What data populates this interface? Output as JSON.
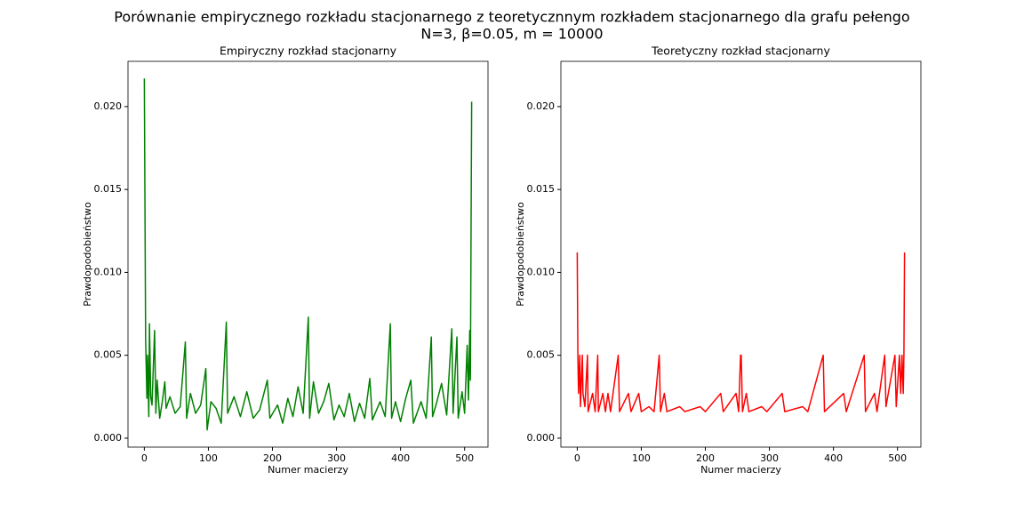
{
  "suptitle": [
    "Porównanie empirycznego rozkładu stacjonarnego z teoretycznnym rozkładem stacjonarnego dla grafu pełengo",
    "N=3, β=0.05, m = 10000"
  ],
  "chart_data": [
    {
      "type": "line",
      "title": "Empiryczny rozkład stacjonarny",
      "xlabel": "Numer macierzy",
      "ylabel": "Prawdopodobieństwo",
      "xlim": [
        -25.5,
        536.5
      ],
      "xticks": [
        0,
        100,
        200,
        300,
        400,
        500
      ],
      "ylim": [
        -0.00054,
        0.02273
      ],
      "yticks": [
        {
          "value": 0,
          "label": "0.000"
        },
        0.005,
        {
          "value": 0.01,
          "label": "0.010"
        },
        0.015,
        {
          "value": 0.02,
          "label": "0.020"
        }
      ],
      "x": [
        0,
        2,
        4,
        5,
        7,
        8,
        10,
        12,
        16,
        18,
        20,
        24,
        28,
        32,
        34,
        40,
        48,
        56,
        64,
        66,
        72,
        80,
        88,
        96,
        98,
        104,
        112,
        120,
        128,
        130,
        140,
        150,
        160,
        170,
        180,
        192,
        196,
        208,
        216,
        224,
        232,
        240,
        248,
        256,
        258,
        264,
        272,
        280,
        288,
        296,
        304,
        312,
        320,
        328,
        336,
        344,
        352,
        356,
        368,
        376,
        384,
        386,
        392,
        400,
        408,
        416,
        420,
        432,
        440,
        448,
        450,
        456,
        464,
        472,
        480,
        482,
        488,
        490,
        496,
        500,
        504,
        506,
        508,
        509,
        511
      ],
      "series": [
        {
          "color": "#008000",
          "values": [
            0.0217,
            0.006,
            0.0024,
            0.005,
            0.0013,
            0.0069,
            0.0025,
            0.002,
            0.0065,
            0.0015,
            0.0035,
            0.0012,
            0.0022,
            0.0034,
            0.0018,
            0.0025,
            0.0015,
            0.0019,
            0.0058,
            0.0012,
            0.0027,
            0.0015,
            0.002,
            0.0042,
            0.0005,
            0.0022,
            0.0018,
            0.0009,
            0.007,
            0.0015,
            0.0025,
            0.0013,
            0.0028,
            0.0012,
            0.0017,
            0.0035,
            0.0012,
            0.002,
            0.0009,
            0.0024,
            0.0013,
            0.0031,
            0.0015,
            0.0073,
            0.0012,
            0.0034,
            0.0015,
            0.0022,
            0.0033,
            0.0011,
            0.002,
            0.0013,
            0.0027,
            0.001,
            0.0021,
            0.0012,
            0.0036,
            0.0011,
            0.0022,
            0.0013,
            0.0069,
            0.0012,
            0.0022,
            0.001,
            0.0024,
            0.0035,
            0.0009,
            0.0022,
            0.0012,
            0.0061,
            0.0013,
            0.0021,
            0.0033,
            0.0014,
            0.0066,
            0.0015,
            0.0061,
            0.0012,
            0.0028,
            0.0015,
            0.0056,
            0.0023,
            0.0065,
            0.0035,
            0.0203
          ]
        }
      ]
    },
    {
      "type": "line",
      "title": "Teoretyczny rozkład stacjonarny",
      "xlabel": "Numer macierzy",
      "ylabel": "Prawdopodobieństwo",
      "xlim": [
        -25.5,
        536.5
      ],
      "xticks": [
        0,
        100,
        200,
        300,
        400,
        500
      ],
      "ylim": [
        -0.00054,
        0.02273
      ],
      "yticks": [
        {
          "value": 0,
          "label": "0.000"
        },
        0.005,
        {
          "value": 0.01,
          "label": "0.010"
        },
        0.015,
        {
          "value": 0.02,
          "label": "0.020"
        }
      ],
      "x": [
        0,
        1,
        2,
        4,
        5,
        8,
        9,
        12,
        16,
        17,
        24,
        28,
        32,
        33,
        40,
        44,
        48,
        52,
        64,
        66,
        80,
        84,
        96,
        100,
        112,
        120,
        128,
        130,
        136,
        140,
        160,
        168,
        192,
        200,
        224,
        228,
        248,
        252,
        255,
        256,
        258,
        264,
        268,
        288,
        296,
        320,
        324,
        352,
        360,
        384,
        386,
        416,
        420,
        448,
        450,
        464,
        468,
        480,
        482,
        496,
        498,
        503,
        505,
        507,
        509,
        510,
        511
      ],
      "series": [
        {
          "color": "#ff0000",
          "values": [
            0.0112,
            0.005,
            0.0027,
            0.005,
            0.0019,
            0.005,
            0.0027,
            0.0019,
            0.005,
            0.0016,
            0.0027,
            0.0016,
            0.005,
            0.0016,
            0.0027,
            0.0016,
            0.0027,
            0.0016,
            0.005,
            0.0016,
            0.0027,
            0.0016,
            0.0027,
            0.0016,
            0.0019,
            0.0016,
            0.005,
            0.0016,
            0.0027,
            0.0016,
            0.0019,
            0.0016,
            0.0019,
            0.0016,
            0.0027,
            0.0016,
            0.0027,
            0.0016,
            0.005,
            0.005,
            0.0016,
            0.0027,
            0.0016,
            0.0019,
            0.0016,
            0.0027,
            0.0016,
            0.0019,
            0.0016,
            0.005,
            0.0016,
            0.0027,
            0.0016,
            0.005,
            0.0016,
            0.0027,
            0.0016,
            0.005,
            0.0019,
            0.005,
            0.0019,
            0.005,
            0.0027,
            0.005,
            0.0027,
            0.005,
            0.0112
          ]
        }
      ]
    }
  ]
}
